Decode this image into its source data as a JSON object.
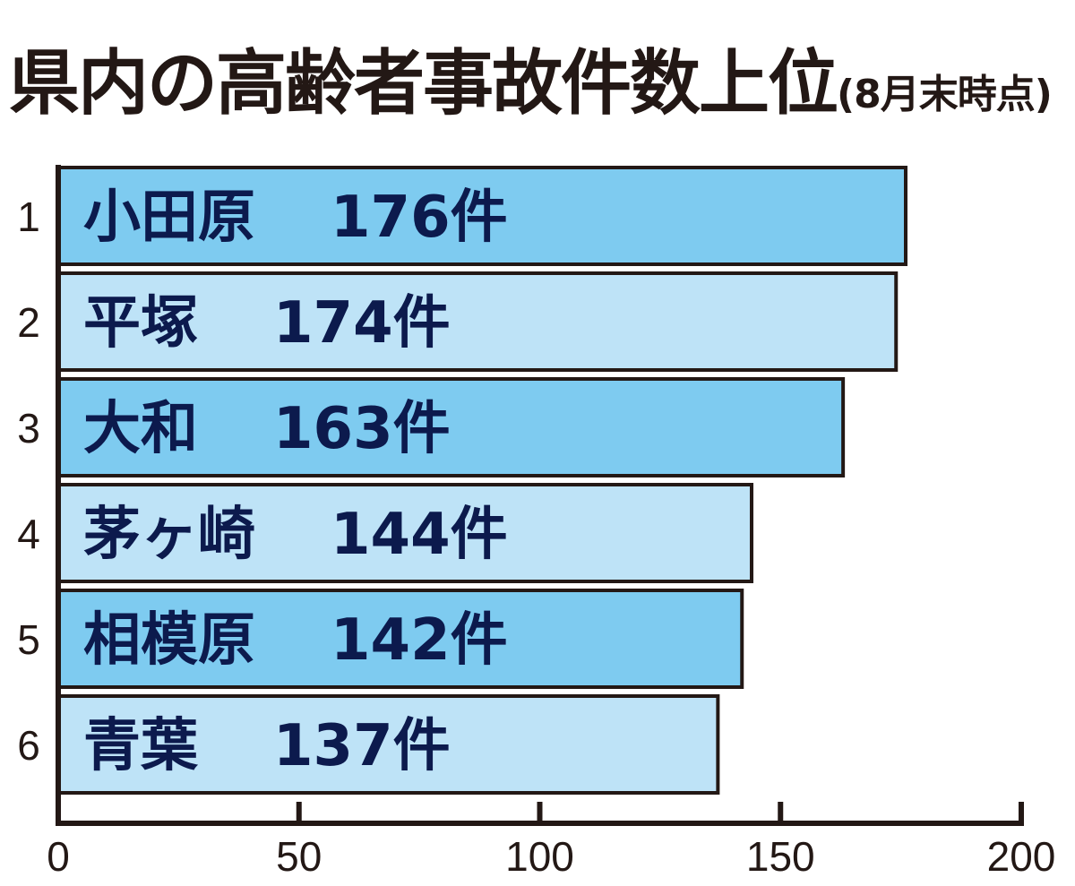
{
  "title": {
    "main": "県内の高齢者事故件数上位",
    "sub": "(8月末時点)"
  },
  "colors": {
    "bar_dark": "#7ecbf0",
    "bar_light": "#bee3f7",
    "outline": "#231815",
    "label_text": "#0c1a4d"
  },
  "chart_data": {
    "type": "bar",
    "orientation": "horizontal",
    "title": "県内の高齢者事故件数上位(8月末時点)",
    "ranks": [
      "1",
      "2",
      "3",
      "4",
      "5",
      "6"
    ],
    "categories": [
      "小田原",
      "平塚",
      "大和",
      "茅ヶ崎",
      "相模原",
      "青葉"
    ],
    "values": [
      176,
      174,
      163,
      144,
      142,
      137
    ],
    "value_labels": [
      "176件",
      "174件",
      "163件",
      "144件",
      "142件",
      "137件"
    ],
    "xlim": [
      0,
      200
    ],
    "x_ticks": [
      "0",
      "50",
      "100",
      "150",
      "200"
    ],
    "grid": false,
    "legend": "none"
  }
}
